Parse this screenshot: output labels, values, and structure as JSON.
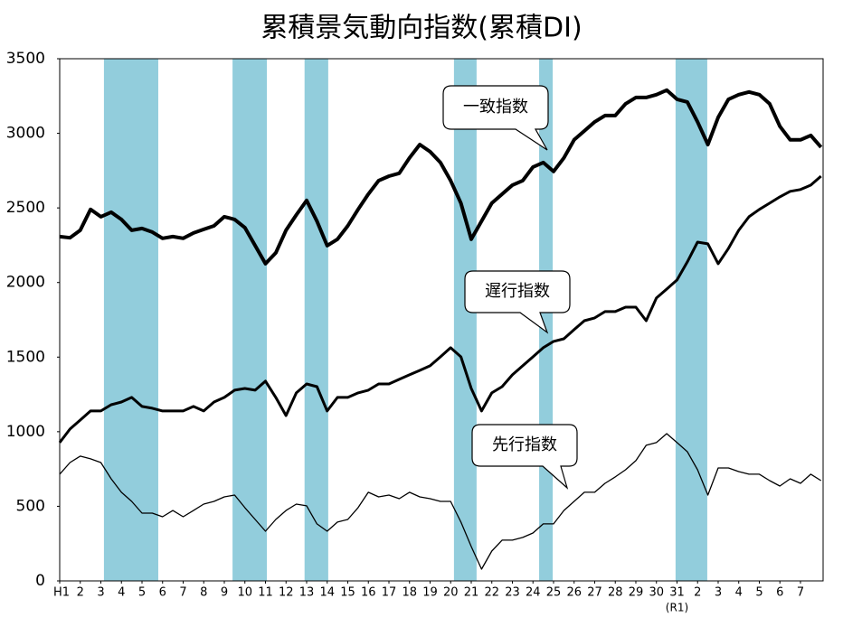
{
  "chart_data": {
    "type": "line",
    "title": "累積景気動向指数(累積DI)",
    "x": [
      0,
      0.5,
      1,
      1.5,
      2,
      2.5,
      3,
      3.5,
      4,
      4.5,
      5,
      5.5,
      6,
      6.5,
      7,
      7.5,
      8,
      8.5,
      9,
      9.5,
      10,
      10.5,
      11,
      11.5,
      12,
      12.5,
      13,
      13.5,
      14,
      14.5,
      15,
      15.5,
      16,
      16.5,
      17,
      17.5,
      18,
      18.5,
      19,
      19.5,
      20,
      20.5,
      21,
      21.5,
      22,
      22.5,
      23,
      23.5,
      24,
      24.5,
      25,
      25.5,
      26,
      26.5,
      27,
      27.5,
      28,
      28.5,
      29,
      29.5,
      30,
      30.5,
      31,
      31.5,
      32,
      32.5,
      33,
      33.5,
      34,
      34.5,
      35,
      35.5,
      36,
      36.5,
      37
    ],
    "series": [
      {
        "name": "一致指数",
        "color": "#000000",
        "values": [
          2308,
          2300,
          2350,
          2490,
          2441,
          2471,
          2423,
          2350,
          2362,
          2338,
          2296,
          2308,
          2296,
          2332,
          2356,
          2380,
          2441,
          2423,
          2368,
          2247,
          2126,
          2199,
          2350,
          2453,
          2550,
          2411,
          2247,
          2290,
          2380,
          2490,
          2592,
          2683,
          2713,
          2732,
          2835,
          2925,
          2877,
          2804,
          2683,
          2532,
          2290,
          2411,
          2532,
          2592,
          2653,
          2683,
          2774,
          2804,
          2744,
          2835,
          2956,
          3016,
          3077,
          3119,
          3119,
          3198,
          3240,
          3240,
          3259,
          3289,
          3228,
          3210,
          3077,
          2925,
          3107,
          3228,
          3259,
          3277,
          3259,
          3198,
          3047,
          2956,
          2956,
          2986,
          2907
        ]
      },
      {
        "name": "遅行指数",
        "color": "#000000",
        "values": [
          927,
          1018,
          1078,
          1139,
          1139,
          1181,
          1199,
          1230,
          1169,
          1157,
          1139,
          1139,
          1139,
          1169,
          1139,
          1199,
          1230,
          1278,
          1290,
          1278,
          1339,
          1230,
          1108,
          1260,
          1320,
          1302,
          1139,
          1230,
          1230,
          1260,
          1278,
          1320,
          1320,
          1351,
          1381,
          1411,
          1442,
          1502,
          1563,
          1502,
          1290,
          1139,
          1260,
          1302,
          1381,
          1442,
          1502,
          1563,
          1605,
          1623,
          1684,
          1744,
          1763,
          1805,
          1805,
          1835,
          1835,
          1744,
          1896,
          1956,
          2017,
          2138,
          2271,
          2259,
          2126,
          2229,
          2350,
          2441,
          2490,
          2532,
          2574,
          2611,
          2623,
          2653,
          2713
        ]
      },
      {
        "name": "先行指数",
        "color": "#000000",
        "values": [
          715,
          793,
          836,
          818,
          793,
          684,
          594,
          533,
          454,
          454,
          430,
          472,
          430,
          472,
          515,
          533,
          563,
          575,
          491,
          412,
          333,
          412,
          472,
          515,
          503,
          382,
          333,
          394,
          412,
          491,
          594,
          563,
          575,
          551,
          594,
          563,
          551,
          533,
          533,
          394,
          230,
          79,
          200,
          273,
          273,
          291,
          321,
          382,
          382,
          472,
          533,
          594,
          594,
          654,
          697,
          745,
          806,
          909,
          927,
          987,
          927,
          866,
          745,
          575,
          757,
          757,
          733,
          715,
          715,
          672,
          636,
          684,
          654,
          715,
          672
        ]
      }
    ],
    "shaded_periods": [
      [
        2.15,
        4.79
      ],
      [
        8.4,
        10.07
      ],
      [
        11.9,
        13.05
      ],
      [
        19.16,
        20.26
      ],
      [
        23.3,
        23.96
      ],
      [
        29.93,
        31.47
      ]
    ],
    "shade_color": "#92cddc",
    "xlim": [
      0,
      37.1
    ],
    "xticks": [
      {
        "value": 0,
        "label": "H1"
      },
      {
        "value": 1,
        "label": "2"
      },
      {
        "value": 2,
        "label": "3"
      },
      {
        "value": 3,
        "label": "4"
      },
      {
        "value": 4,
        "label": "5"
      },
      {
        "value": 5,
        "label": "6"
      },
      {
        "value": 6,
        "label": "7"
      },
      {
        "value": 7,
        "label": "8"
      },
      {
        "value": 8,
        "label": "9"
      },
      {
        "value": 9,
        "label": "10"
      },
      {
        "value": 10,
        "label": "11"
      },
      {
        "value": 11,
        "label": "12"
      },
      {
        "value": 12,
        "label": "13"
      },
      {
        "value": 13,
        "label": "14"
      },
      {
        "value": 14,
        "label": "15"
      },
      {
        "value": 15,
        "label": "16"
      },
      {
        "value": 16,
        "label": "17"
      },
      {
        "value": 17,
        "label": "18"
      },
      {
        "value": 18,
        "label": "19"
      },
      {
        "value": 19,
        "label": "20"
      },
      {
        "value": 20,
        "label": "21"
      },
      {
        "value": 21,
        "label": "22"
      },
      {
        "value": 22,
        "label": "23"
      },
      {
        "value": 23,
        "label": "24"
      },
      {
        "value": 24,
        "label": "25"
      },
      {
        "value": 25,
        "label": "26"
      },
      {
        "value": 26,
        "label": "27"
      },
      {
        "value": 27,
        "label": "28"
      },
      {
        "value": 28,
        "label": "29"
      },
      {
        "value": 29,
        "label": "30"
      },
      {
        "value": 30,
        "label": "31"
      },
      {
        "value": 31,
        "label": "2"
      },
      {
        "value": 32,
        "label": "3"
      },
      {
        "value": 33,
        "label": "4"
      },
      {
        "value": 34,
        "label": "5"
      },
      {
        "value": 35,
        "label": "6"
      },
      {
        "value": 36,
        "label": "7"
      }
    ],
    "x_era_note": "(R1)",
    "ylim": [
      0,
      3500
    ],
    "yticks": [
      0,
      500,
      1000,
      1500,
      2000,
      2500,
      3000,
      3500
    ]
  }
}
